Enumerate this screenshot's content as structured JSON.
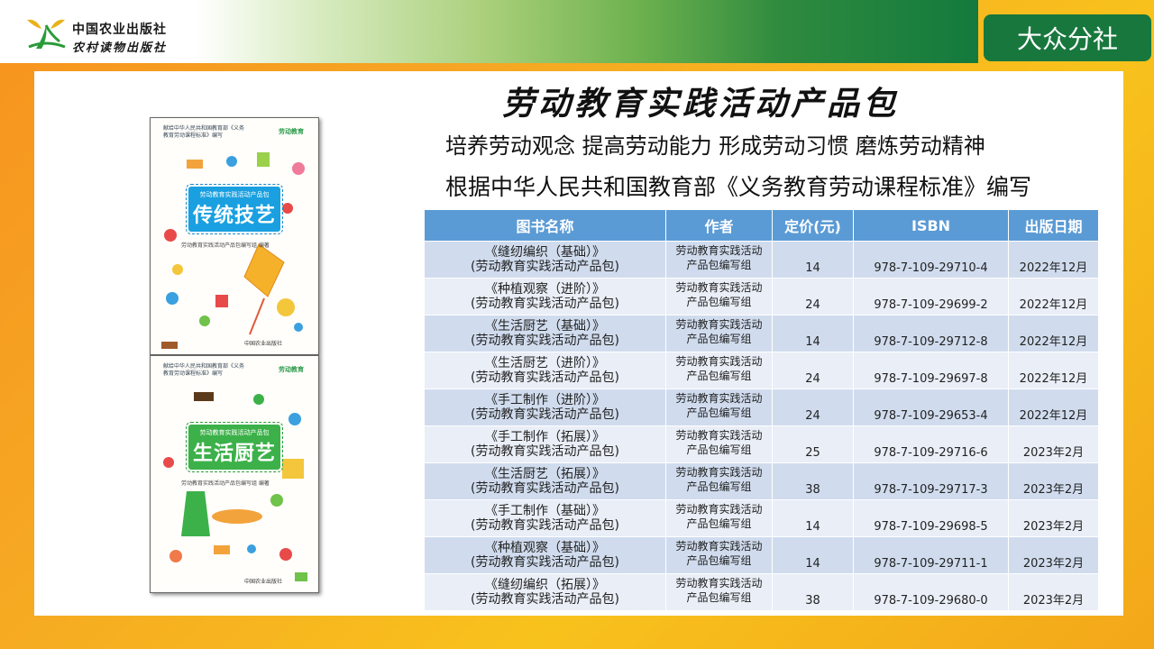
{
  "header": {
    "publisher_name": "中国农业出版社",
    "publisher_name_2": "农村读物出版社",
    "branch_label": "大众分社"
  },
  "main": {
    "title": "劳动教育实践活动产品包",
    "subtitle_1": "培养劳动观念 提高劳动能力 形成劳动习惯 磨炼劳动精神",
    "subtitle_2": "根据中华人民共和国教育部《义务教育劳动课程标准》编写"
  },
  "covers": [
    {
      "series": "献给中华人民共和国教育部《义务教育劳动课程标准》编写",
      "badge": "劳动教育",
      "card_small": "劳动教育实践活动产品包",
      "card_title": "传统技艺",
      "author": "劳动教育实践活动产品包编写组 编著",
      "press": "中国农业出版社"
    },
    {
      "series": "献给中华人民共和国教育部《义务教育劳动课程标准》编写",
      "badge": "劳动教育",
      "card_small": "劳动教育实践活动产品包",
      "card_title": "生活厨艺",
      "author": "劳动教育实践活动产品包编写组 编著",
      "press": "中国农业出版社"
    }
  ],
  "table": {
    "headers": [
      "图书名称",
      "作者",
      "定价(元)",
      "ISBN",
      "出版日期"
    ],
    "rows": [
      {
        "name1": "《缝纫编织（基础）》",
        "name2": "(劳动教育实践活动产品包)",
        "author1": "劳动教育实践活动",
        "author2": "产品包编写组",
        "price": "14",
        "isbn": "978-7-109-29710-4",
        "date": "2022年12月"
      },
      {
        "name1": "《种植观察（进阶）》",
        "name2": "(劳动教育实践活动产品包)",
        "author1": "劳动教育实践活动",
        "author2": "产品包编写组",
        "price": "24",
        "isbn": "978-7-109-29699-2",
        "date": "2022年12月"
      },
      {
        "name1": "《生活厨艺（基础）》",
        "name2": "(劳动教育实践活动产品包)",
        "author1": "劳动教育实践活动",
        "author2": "产品包编写组",
        "price": "14",
        "isbn": "978-7-109-29712-8",
        "date": "2022年12月"
      },
      {
        "name1": "《生活厨艺（进阶）》",
        "name2": "(劳动教育实践活动产品包)",
        "author1": "劳动教育实践活动",
        "author2": "产品包编写组",
        "price": "24",
        "isbn": "978-7-109-29697-8",
        "date": "2022年12月"
      },
      {
        "name1": "《手工制作（进阶）》",
        "name2": "(劳动教育实践活动产品包)",
        "author1": "劳动教育实践活动",
        "author2": "产品包编写组",
        "price": "24",
        "isbn": "978-7-109-29653-4",
        "date": "2022年12月"
      },
      {
        "name1": "《手工制作（拓展）》",
        "name2": "(劳动教育实践活动产品包)",
        "author1": "劳动教育实践活动",
        "author2": "产品包编写组",
        "price": "25",
        "isbn": "978-7-109-29716-6",
        "date": "2023年2月"
      },
      {
        "name1": "《生活厨艺（拓展）》",
        "name2": "(劳动教育实践活动产品包)",
        "author1": "劳动教育实践活动",
        "author2": "产品包编写组",
        "price": "38",
        "isbn": "978-7-109-29717-3",
        "date": "2023年2月"
      },
      {
        "name1": "《手工制作（基础）》",
        "name2": "(劳动教育实践活动产品包)",
        "author1": "劳动教育实践活动",
        "author2": "产品包编写组",
        "price": "14",
        "isbn": "978-7-109-29698-5",
        "date": "2023年2月"
      },
      {
        "name1": "《种植观察（基础）》",
        "name2": "(劳动教育实践活动产品包)",
        "author1": "劳动教育实践活动",
        "author2": "产品包编写组",
        "price": "14",
        "isbn": "978-7-109-29711-1",
        "date": "2023年2月"
      },
      {
        "name1": "《缝纫编织（拓展）》",
        "name2": "(劳动教育实践活动产品包)",
        "author1": "劳动教育实践活动",
        "author2": "产品包编写组",
        "price": "38",
        "isbn": "978-7-109-29680-0",
        "date": "2023年2月"
      }
    ]
  },
  "colors": {
    "header_green": "#18773d",
    "table_header": "#5b9bd5",
    "row_odd": "#d0dcee",
    "row_even": "#e9eef7"
  }
}
